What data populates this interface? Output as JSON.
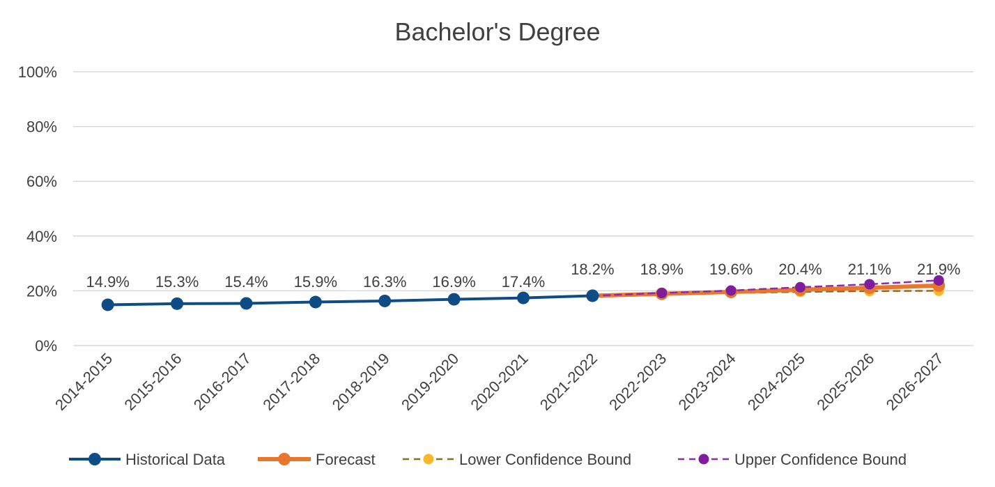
{
  "chart_data": {
    "type": "line",
    "title": "Bachelor's Degree",
    "categories": [
      "2014-2015",
      "2015-2016",
      "2016-2017",
      "2017-2018",
      "2018-2019",
      "2019-2020",
      "2020-2021",
      "2021-2022",
      "2022-2023",
      "2023-2024",
      "2024-2025",
      "2025-2026",
      "2026-2027"
    ],
    "ylim": [
      0,
      100
    ],
    "yticks": [
      "0%",
      "20%",
      "40%",
      "60%",
      "80%",
      "100%"
    ],
    "grid": true,
    "legend_position": "bottom",
    "series": [
      {
        "name": "Historical Data",
        "color": "#0E4C85",
        "style": "solid-marker",
        "values": [
          14.9,
          15.3,
          15.4,
          15.9,
          16.3,
          16.9,
          17.4,
          18.2,
          null,
          null,
          null,
          null,
          null
        ]
      },
      {
        "name": "Forecast",
        "color": "#E8762D",
        "style": "thick-marker",
        "values": [
          null,
          null,
          null,
          null,
          null,
          null,
          null,
          18.2,
          18.9,
          19.6,
          20.4,
          21.1,
          21.9
        ]
      },
      {
        "name": "Lower Confidence Bound",
        "color": "#FBB72A",
        "line_color": "#8C6A1F",
        "style": "dashed-marker",
        "values": [
          null,
          null,
          null,
          null,
          null,
          null,
          null,
          18.2,
          18.6,
          19.2,
          19.6,
          19.9,
          20.0
        ]
      },
      {
        "name": "Upper Confidence Bound",
        "color": "#7E1E9C",
        "line_color": "#8E2CA8",
        "style": "dashed-marker",
        "values": [
          null,
          null,
          null,
          null,
          null,
          null,
          null,
          18.2,
          19.2,
          20.1,
          21.3,
          22.4,
          23.8
        ]
      }
    ],
    "data_labels": [
      "14.9%",
      "15.3%",
      "15.4%",
      "15.9%",
      "16.3%",
      "16.9%",
      "17.4%",
      "18.2%",
      "18.9%",
      "19.6%",
      "20.4%",
      "21.1%",
      "21.9%"
    ]
  }
}
